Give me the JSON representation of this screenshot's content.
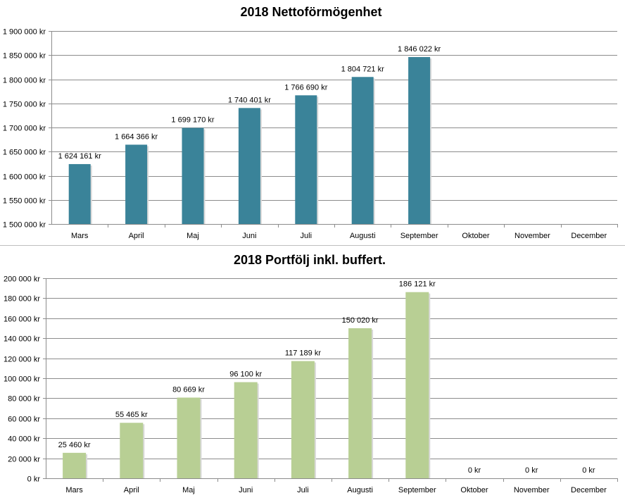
{
  "chart_data": [
    {
      "type": "bar",
      "title": "2018 Nettoförmögenhet",
      "xlabel": "",
      "ylabel": "",
      "categories": [
        "Mars",
        "April",
        "Maj",
        "Juni",
        "Juli",
        "Augusti",
        "September",
        "Oktober",
        "November",
        "December"
      ],
      "values": [
        1624161,
        1664366,
        1699170,
        1740401,
        1766690,
        1804721,
        1846022,
        null,
        null,
        null
      ],
      "data_labels": [
        "1 624 161 kr",
        "1 664 366 kr",
        "1 699 170 kr",
        "1 740 401 kr",
        "1 766 690 kr",
        "1 804 721 kr",
        "1 846 022 kr",
        "",
        "",
        ""
      ],
      "ylim": [
        1500000,
        1900000
      ],
      "yticks": [
        "1 500 000 kr",
        "1 550 000 kr",
        "1 600 000 kr",
        "1 650 000 kr",
        "1 700 000 kr",
        "1 750 000 kr",
        "1 800 000 kr",
        "1 850 000 kr",
        "1 900 000 kr"
      ],
      "grid": true,
      "legend": "none",
      "color": "#3a8399"
    },
    {
      "type": "bar",
      "title": "2018 Portfölj inkl. buffert.",
      "xlabel": "",
      "ylabel": "",
      "categories": [
        "Mars",
        "April",
        "Maj",
        "Juni",
        "Juli",
        "Augusti",
        "September",
        "Oktober",
        "November",
        "December"
      ],
      "values": [
        25460,
        55465,
        80669,
        96100,
        117189,
        150020,
        186121,
        0,
        0,
        0
      ],
      "data_labels": [
        "25 460 kr",
        "55 465 kr",
        "80 669 kr",
        "96 100 kr",
        "117 189 kr",
        "150 020 kr",
        "186 121 kr",
        "0 kr",
        "0 kr",
        "0 kr"
      ],
      "ylim": [
        0,
        200000
      ],
      "yticks": [
        "0 kr",
        "20 000 kr",
        "40 000 kr",
        "60 000 kr",
        "80 000 kr",
        "100 000 kr",
        "120 000 kr",
        "140 000 kr",
        "160 000 kr",
        "180 000 kr",
        "200 000 kr"
      ],
      "grid": true,
      "legend": "none",
      "color": "#b8cf94"
    }
  ]
}
